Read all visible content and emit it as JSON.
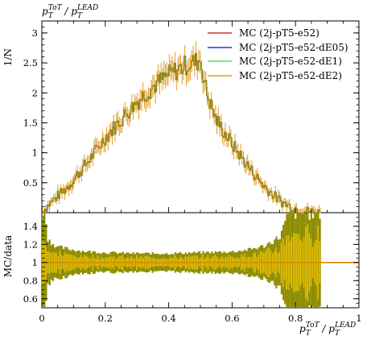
{
  "colors": {
    "series": [
      "#cc0000",
      "#0000ee",
      "#33dd33",
      "#dd8800"
    ],
    "band_outer": "#8c8c00",
    "band_inner": "#f5c400",
    "overlap_line": "#a08a10",
    "axis": "#000000"
  },
  "texts": {
    "title_main": "p",
    "title_sub1": "T",
    "title_sup1": "ToT",
    "title_slash": " / p",
    "title_sub2": "T",
    "title_sup2": "LEAD",
    "top_ylabel": "1/N",
    "bottom_ylabel": "MC/data",
    "xlabel_main": "p",
    "xlabel_sub1": "T",
    "xlabel_sup1": "ToT",
    "xlabel_slash": " / p",
    "xlabel_sub2": "T",
    "xlabel_sup2": "LEAD"
  },
  "chart_data": [
    {
      "type": "line",
      "title": "",
      "xlabel": "",
      "ylabel": "1/N",
      "xlim": [
        0,
        1
      ],
      "ylim": [
        0,
        3.2
      ],
      "yticks": [
        0.5,
        1,
        1.5,
        2,
        2.5,
        3
      ],
      "ytick_labels": [
        "0.5",
        "1",
        "1.5",
        "2",
        "2.5",
        "3"
      ],
      "legend_position": "top-right",
      "x": [
        0.0,
        0.02,
        0.05,
        0.08,
        0.1,
        0.15,
        0.2,
        0.25,
        0.3,
        0.35,
        0.4,
        0.45,
        0.5,
        0.52,
        0.55,
        0.6,
        0.65,
        0.7,
        0.75,
        0.8,
        0.85,
        0.88
      ],
      "series": [
        {
          "name": "MC (2j-pT5-e52)",
          "values": [
            0.0,
            0.12,
            0.28,
            0.42,
            0.55,
            0.88,
            1.25,
            1.55,
            1.85,
            2.1,
            2.3,
            2.45,
            2.55,
            2.0,
            1.55,
            1.15,
            0.78,
            0.45,
            0.2,
            0.06,
            0.02,
            0.0
          ]
        },
        {
          "name": "MC (2j-pT5-e52-dE05)",
          "values": [
            0.0,
            0.12,
            0.28,
            0.42,
            0.55,
            0.88,
            1.25,
            1.55,
            1.85,
            2.1,
            2.3,
            2.45,
            2.55,
            2.0,
            1.55,
            1.15,
            0.78,
            0.45,
            0.2,
            0.06,
            0.02,
            0.0
          ]
        },
        {
          "name": "MC (2j-pT5-e52-dE1)",
          "values": [
            0.0,
            0.12,
            0.28,
            0.42,
            0.55,
            0.88,
            1.25,
            1.55,
            1.85,
            2.1,
            2.3,
            2.45,
            2.55,
            2.0,
            1.55,
            1.15,
            0.78,
            0.45,
            0.2,
            0.06,
            0.02,
            0.0
          ]
        },
        {
          "name": "MC (2j-pT5-e52-dE2)",
          "values": [
            0.0,
            0.12,
            0.28,
            0.42,
            0.55,
            0.88,
            1.25,
            1.55,
            1.85,
            2.1,
            2.3,
            2.45,
            2.55,
            2.0,
            1.55,
            1.15,
            0.78,
            0.45,
            0.2,
            0.06,
            0.02,
            0.0
          ]
        }
      ]
    },
    {
      "type": "area",
      "title": "",
      "xlabel": "pTToT / pTLEAD",
      "ylabel": "MC/data",
      "xlim": [
        0,
        1
      ],
      "ylim": [
        0.5,
        1.55
      ],
      "yticks": [
        0.6,
        0.8,
        1.0,
        1.2,
        1.4
      ],
      "ytick_labels": [
        "0.6",
        "0.8",
        "1",
        "1.2",
        "1.4"
      ],
      "xticks": [
        0,
        0.2,
        0.4,
        0.6,
        0.8,
        1
      ],
      "xtick_labels": [
        "0",
        "0.2",
        "0.4",
        "0.6",
        "0.8",
        "1"
      ],
      "ratio_line": 1.0,
      "band_x": [
        0.0,
        0.01,
        0.02,
        0.05,
        0.1,
        0.15,
        0.2,
        0.3,
        0.4,
        0.5,
        0.6,
        0.65,
        0.7,
        0.72,
        0.75,
        0.78,
        0.8,
        0.85,
        0.88
      ],
      "band_half_width": [
        0.55,
        0.55,
        0.25,
        0.17,
        0.14,
        0.12,
        0.11,
        0.1,
        0.1,
        0.11,
        0.12,
        0.14,
        0.18,
        0.22,
        0.28,
        0.55,
        0.55,
        0.55,
        0.55
      ]
    }
  ]
}
